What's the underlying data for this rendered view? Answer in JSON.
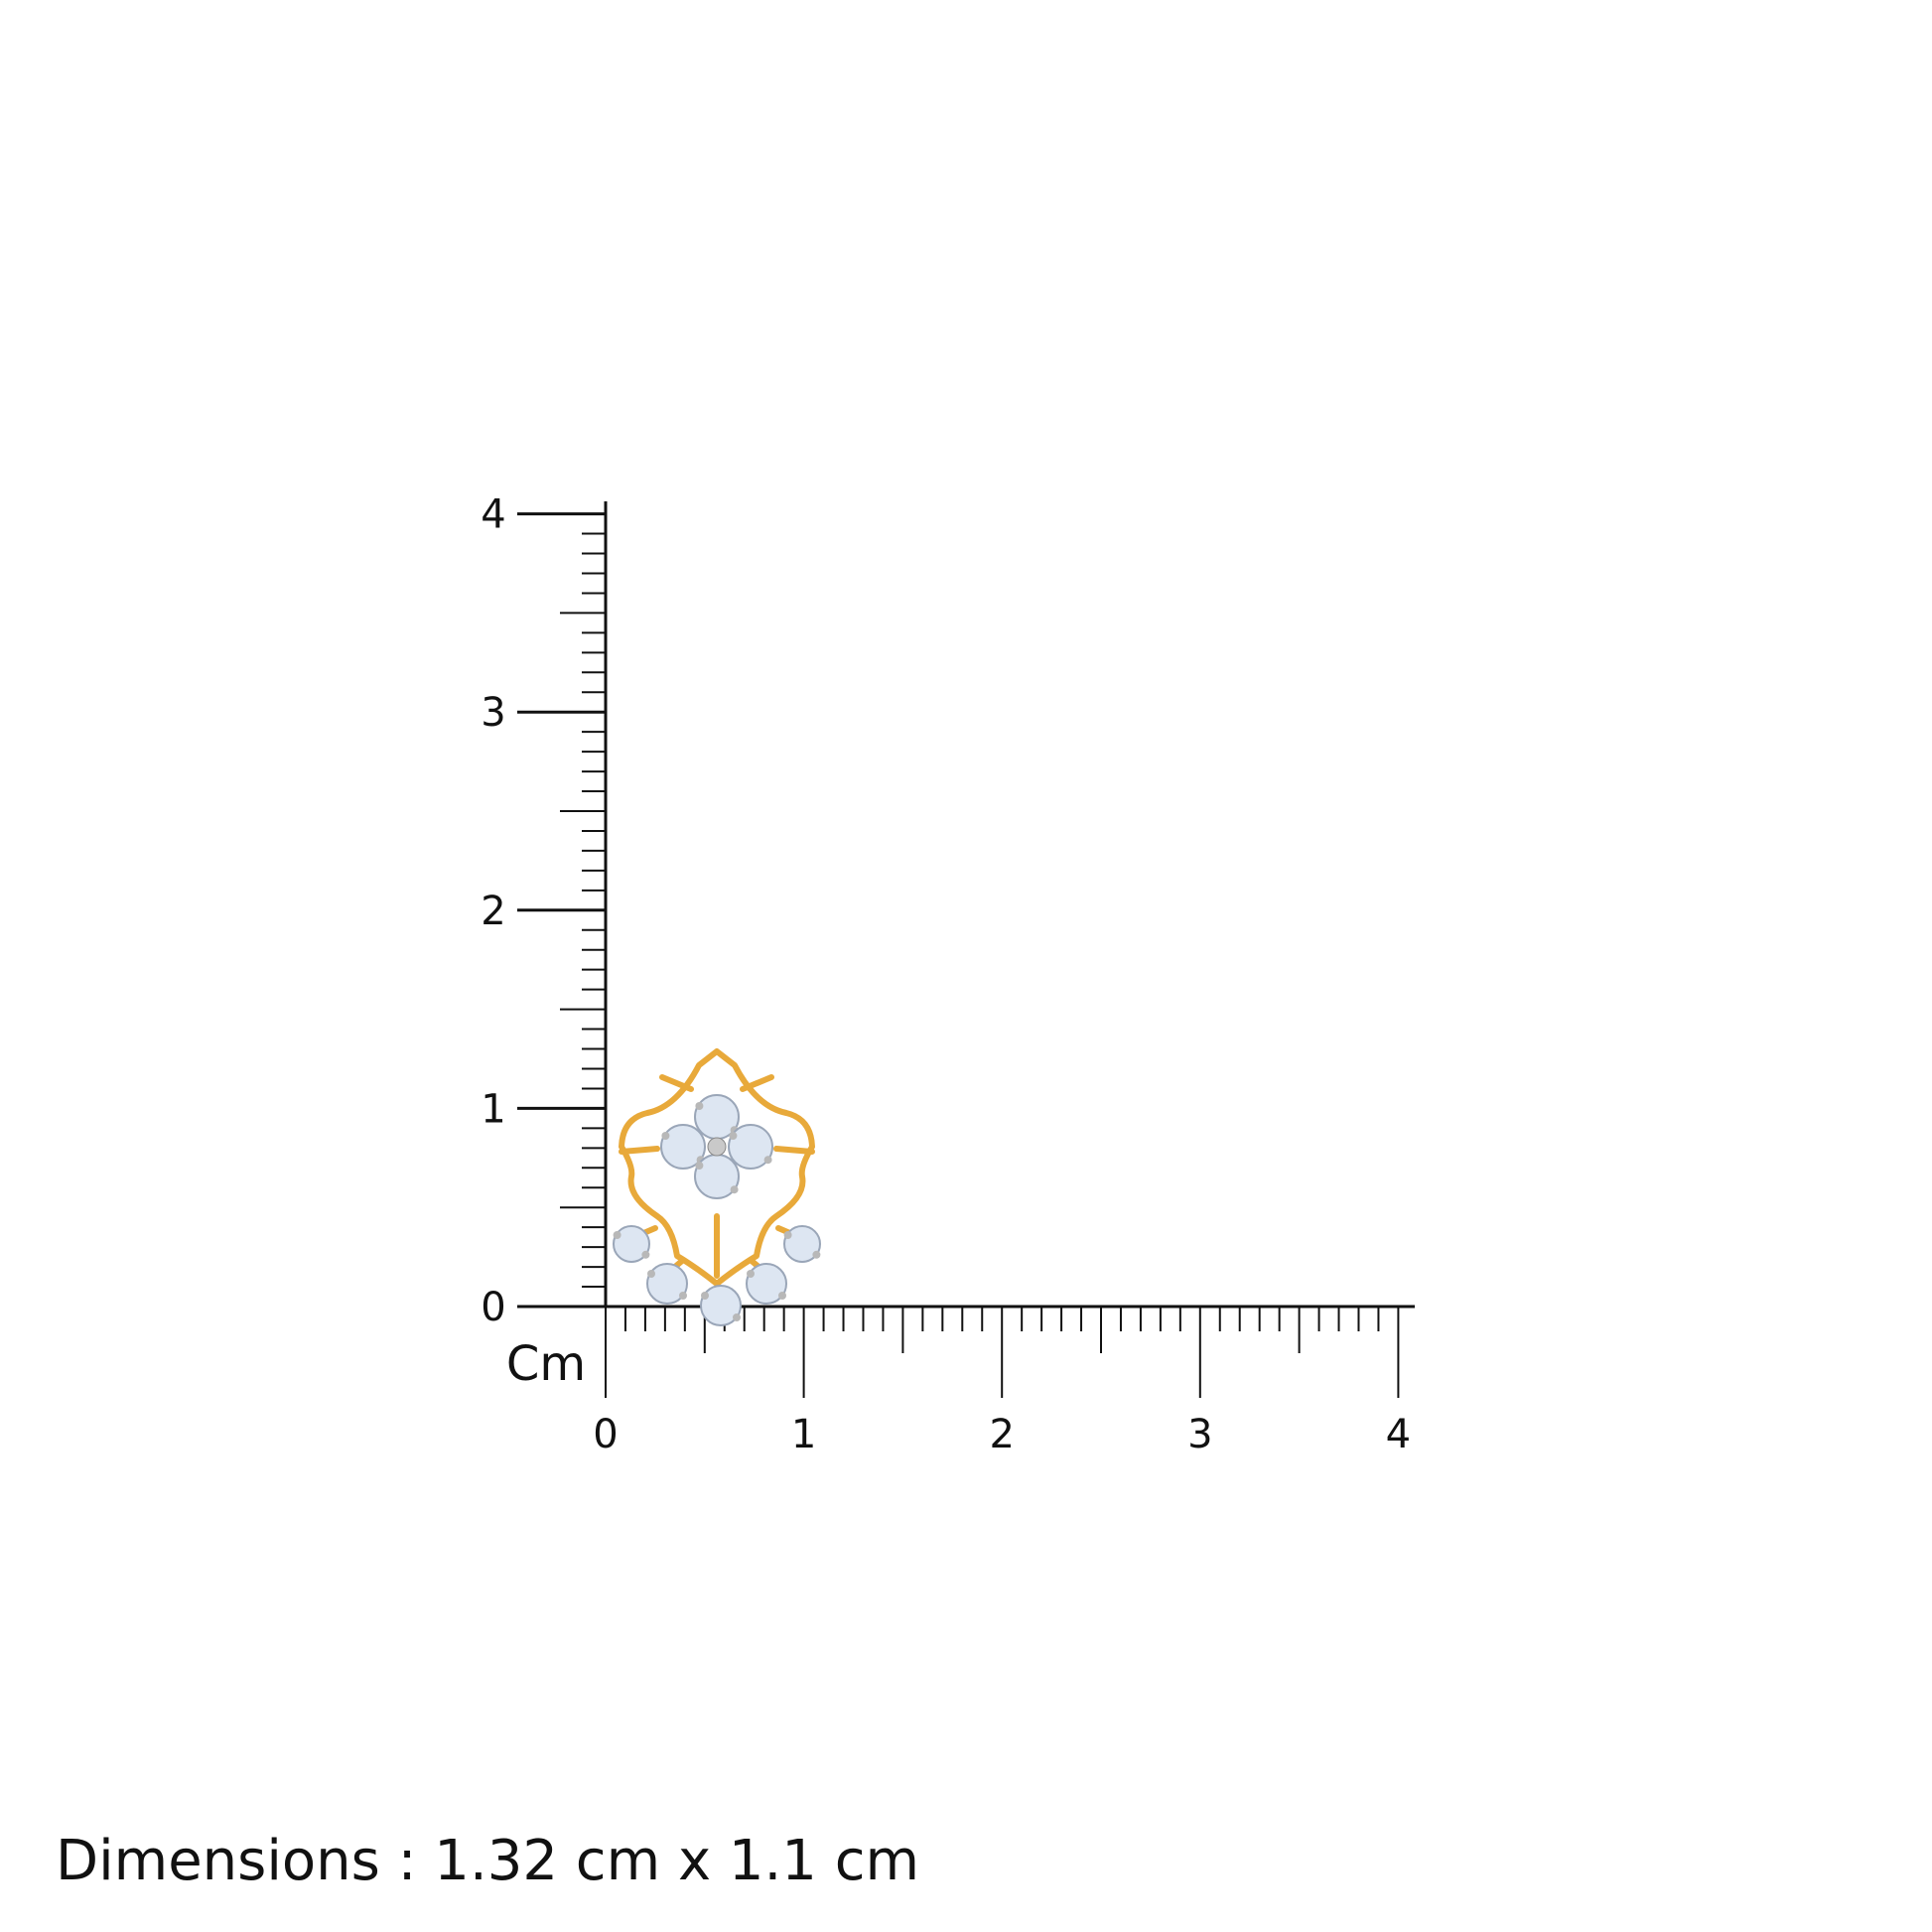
{
  "ruler": {
    "unit_label": "Cm",
    "y_tick_labels": [
      "0",
      "1",
      "2",
      "3",
      "4"
    ],
    "x_tick_labels": [
      "0",
      "1",
      "2",
      "3",
      "4"
    ],
    "range_cm": [
      0,
      4
    ],
    "minor_divisions_per_cm": 10
  },
  "product": {
    "metal_color": "#E8A93A",
    "stone_color": "#DDE6F2",
    "prong_color": "#B8B8B8"
  },
  "caption": {
    "dimensions_text": "Dimensions : 1.32 cm x 1.1 cm"
  }
}
